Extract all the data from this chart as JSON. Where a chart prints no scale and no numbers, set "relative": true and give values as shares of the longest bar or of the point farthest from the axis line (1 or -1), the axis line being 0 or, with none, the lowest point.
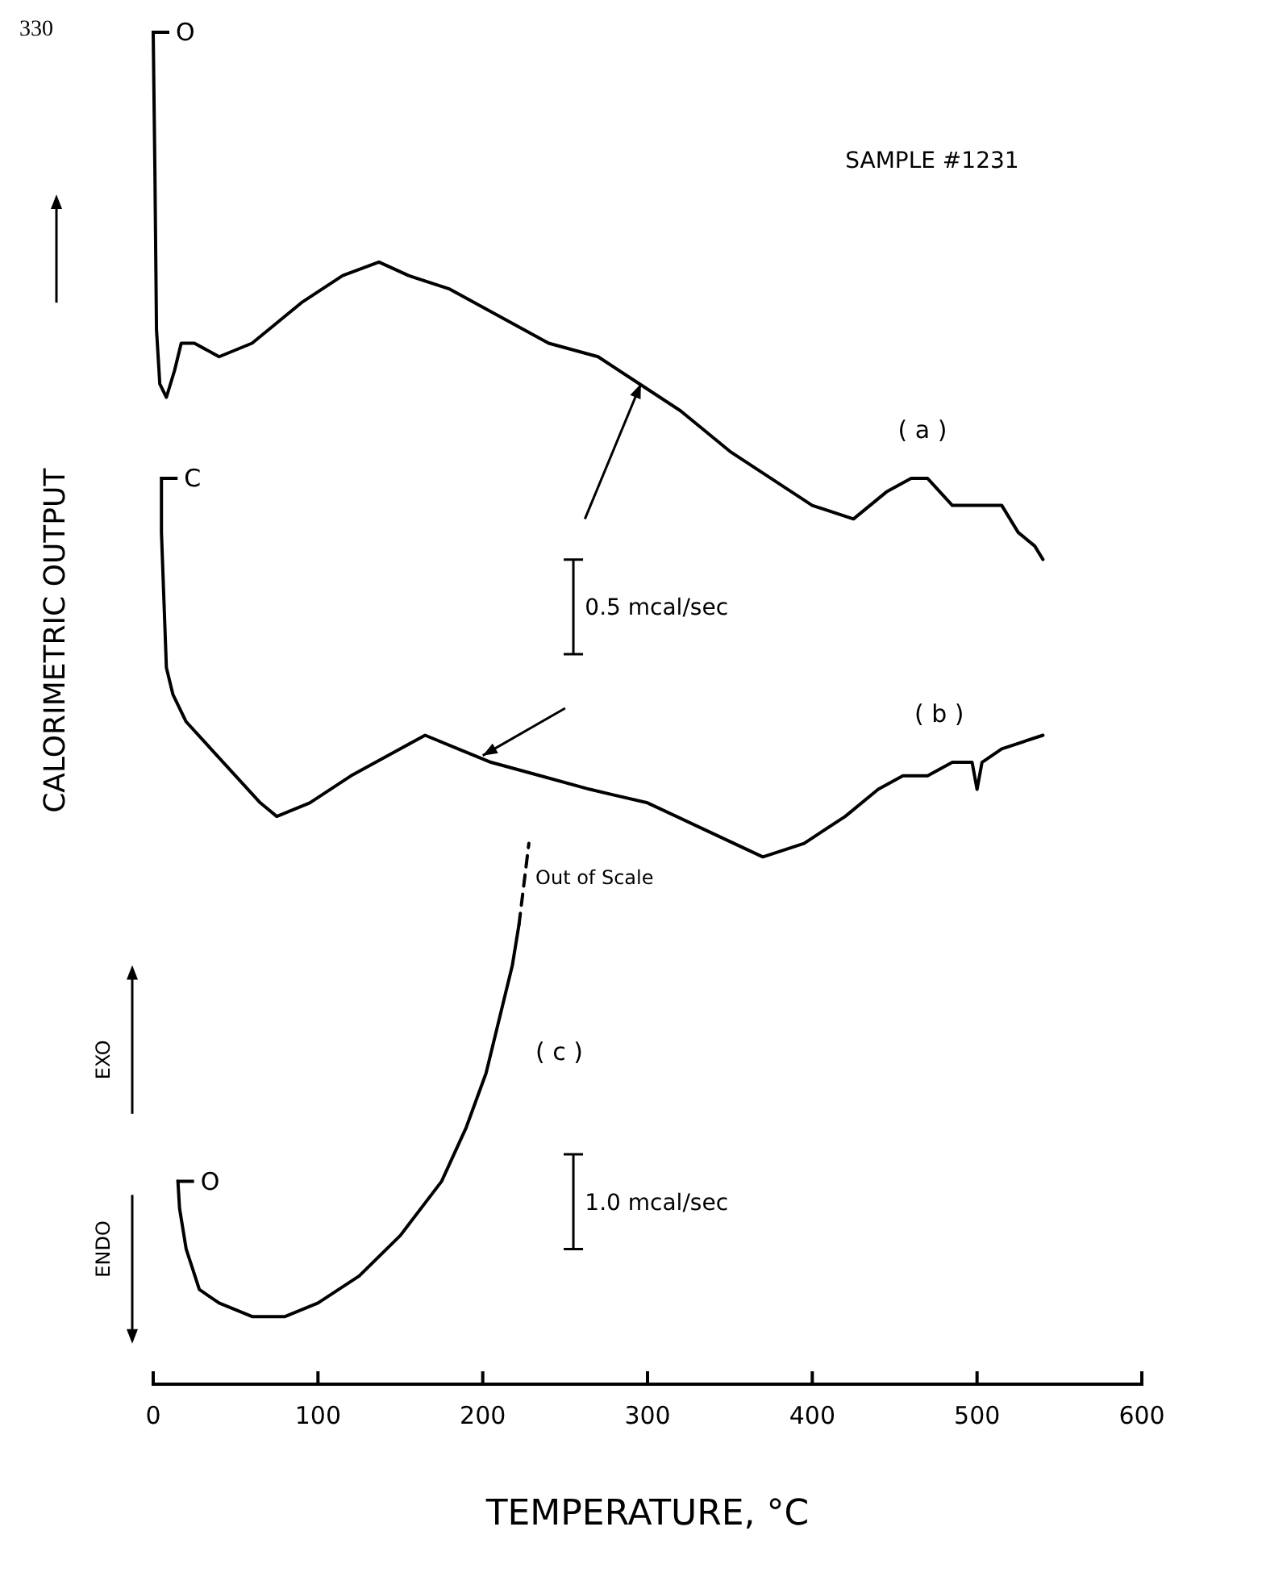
{
  "chart_data": {
    "type": "line",
    "relative": true,
    "xlabel": "TEMPERATURE,  °C",
    "ylabel": "CALORIMETRIC OUTPUT",
    "xlim": [
      0,
      600
    ],
    "xticks": [
      0,
      100,
      200,
      300,
      400,
      500,
      600
    ],
    "tick_labels": "x",
    "grid": false,
    "legend": false,
    "marker": "none",
    "line_style": "solid",
    "series": [
      {
        "name": "( a )",
        "color": "#000000",
        "x": [
          0,
          1,
          2,
          4,
          8,
          13,
          17,
          25,
          40,
          60,
          90,
          115,
          137,
          155,
          180,
          210,
          240,
          270,
          295,
          320,
          350,
          375,
          400,
          425,
          445,
          460,
          470,
          485,
          500,
          515,
          525,
          535,
          540
        ],
        "values": [
          1.0,
          0.9,
          0.78,
          0.74,
          0.73,
          0.75,
          0.77,
          0.77,
          0.76,
          0.77,
          0.8,
          0.82,
          0.83,
          0.82,
          0.81,
          0.79,
          0.77,
          0.76,
          0.74,
          0.72,
          0.69,
          0.67,
          0.65,
          0.64,
          0.66,
          0.67,
          0.67,
          0.65,
          0.65,
          0.65,
          0.63,
          0.62,
          0.61
        ]
      },
      {
        "name": "( b )",
        "color": "#000000",
        "x": [
          5,
          5,
          8,
          12,
          20,
          35,
          50,
          65,
          75,
          95,
          120,
          150,
          165,
          185,
          205,
          235,
          265,
          300,
          335,
          370,
          395,
          420,
          440,
          455,
          470,
          485,
          497,
          500,
          503,
          515,
          540
        ],
        "values": [
          0.67,
          0.63,
          0.53,
          0.51,
          0.49,
          0.47,
          0.45,
          0.43,
          0.42,
          0.43,
          0.45,
          0.47,
          0.48,
          0.47,
          0.46,
          0.45,
          0.44,
          0.43,
          0.41,
          0.39,
          0.4,
          0.42,
          0.44,
          0.45,
          0.45,
          0.46,
          0.46,
          0.44,
          0.46,
          0.47,
          0.48
        ]
      },
      {
        "name": "( c )",
        "color": "#000000",
        "x": [
          15,
          16,
          20,
          28,
          40,
          60,
          80,
          100,
          125,
          150,
          175,
          190,
          202,
          212,
          218,
          222
        ],
        "values": [
          0.15,
          0.13,
          0.1,
          0.07,
          0.06,
          0.05,
          0.05,
          0.06,
          0.08,
          0.11,
          0.15,
          0.19,
          0.23,
          0.28,
          0.31,
          0.34
        ]
      },
      {
        "color": "#000000",
        "line_style": "dashed",
        "x": [
          222,
          226,
          228
        ],
        "values": [
          0.34,
          0.38,
          0.4
        ]
      }
    ],
    "annotations": [
      "330",
      "SAMPLE #1231",
      "0.5 mcal/sec",
      "1.0 mcal/sec",
      "Out of Scale",
      "EXO",
      "ENDO",
      {
        "text": "O",
        "x": 0,
        "y": 1.0
      },
      {
        "text": "C",
        "x": 5,
        "y": 0.67
      },
      {
        "text": "O",
        "x": 15,
        "y": 0.15
      }
    ]
  }
}
